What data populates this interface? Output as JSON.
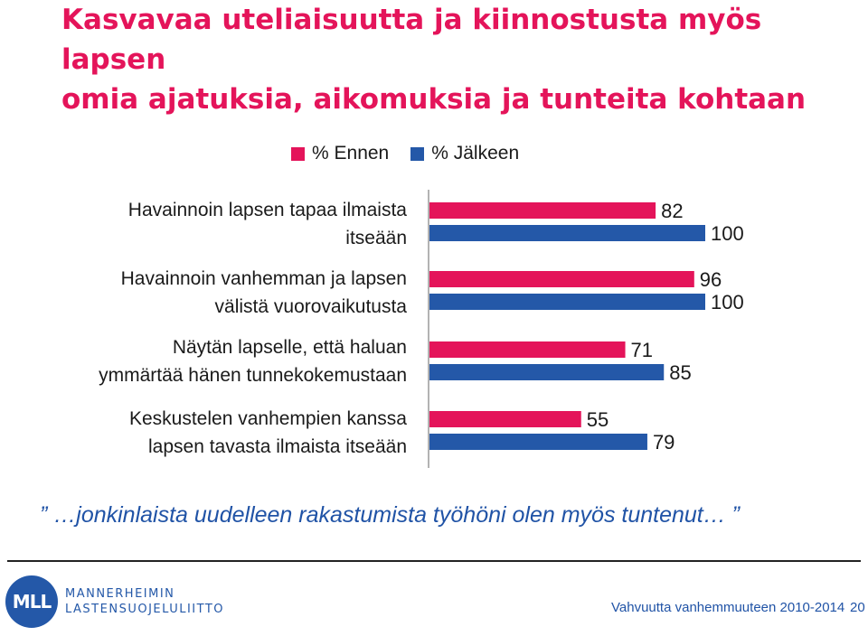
{
  "title": {
    "line1": "Kasvavaa uteliaisuutta ja kiinnostusta myös lapsen",
    "line2": "omia ajatuksia, aikomuksia ja tunteita kohtaan"
  },
  "chart_data": {
    "type": "bar",
    "orientation": "horizontal",
    "categories": [
      [
        "Havainnoin lapsen tapaa ilmaista",
        "itseään"
      ],
      [
        "Havainnoin vanhemman ja lapsen",
        "välistä vuorovaikutusta"
      ],
      [
        "Näytän lapselle, että haluan",
        "ymmärtää hänen tunnekokemustaan"
      ],
      [
        "Keskustelen vanhempien kanssa",
        "lapsen tavasta ilmaista itseään"
      ]
    ],
    "series": [
      {
        "name": "% Ennen",
        "color": "#e4145a",
        "values": [
          82,
          96,
          71,
          55
        ]
      },
      {
        "name": "% Jälkeen",
        "color": "#2458a8",
        "values": [
          100,
          100,
          85,
          79
        ]
      }
    ],
    "xlim": [
      0,
      100
    ],
    "legend_position": "top",
    "grid": false
  },
  "quote": "” …jonkinlaista uudelleen rakastumista työhöni olen myös tuntenut… ”",
  "logo": {
    "initials": "MLL",
    "line1": "MANNERHEIMIN",
    "line2": "LASTENSUOJELULIITTO"
  },
  "footer": {
    "text": "Vahvuutta vanhemmuuteen 2010-2014",
    "page": "20"
  }
}
